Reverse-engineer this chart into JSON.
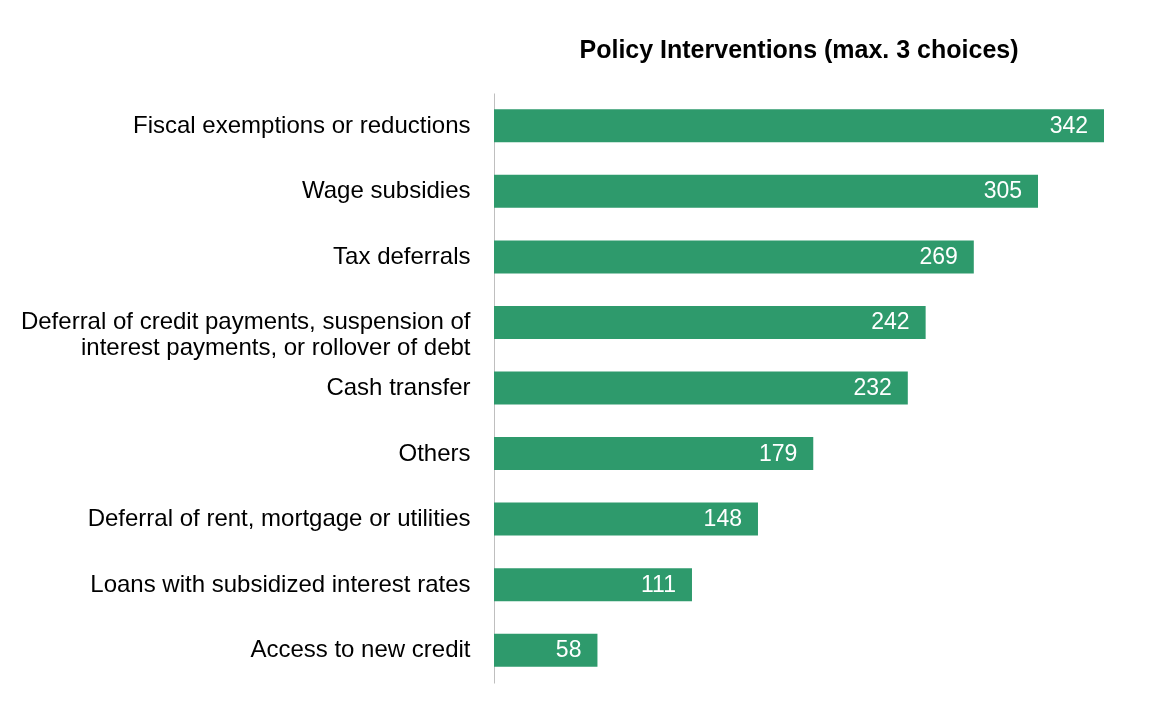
{
  "chart_data": {
    "type": "bar",
    "title": "Policy Interventions (max. 3 choices)",
    "orientation": "horizontal",
    "categories": [
      "Fiscal exemptions or reductions",
      "Wage subsidies",
      "Tax deferrals",
      "Deferral of credit payments, suspension of interest payments, or rollover of debt",
      "Cash transfer",
      "Others",
      "Deferral of rent, mortgage or utilities",
      "Loans with subsidized interest rates",
      "Access to new credit"
    ],
    "values": [
      342,
      305,
      269,
      242,
      232,
      179,
      148,
      111,
      58
    ],
    "color": "#2e9a6c",
    "data_labels": true,
    "grid": false
  }
}
